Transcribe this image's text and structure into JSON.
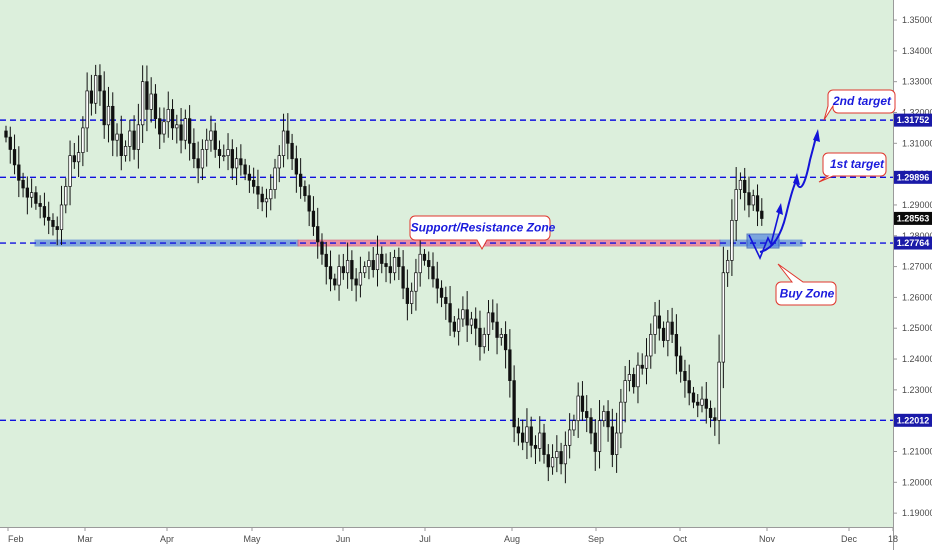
{
  "chart_data": {
    "type": "candlestick",
    "x_tick_labels": [
      "Feb",
      "Mar",
      "Apr",
      "May",
      "Jun",
      "Jul",
      "Aug",
      "Sep",
      "Oct",
      "Nov",
      "Dec",
      "18"
    ],
    "y_tick_labels": [
      "1.35000",
      "1.34000",
      "1.33000",
      "1.32000",
      "1.31000",
      "1.30000",
      "1.29000",
      "1.28000",
      "1.27000",
      "1.26000",
      "1.25000",
      "1.24000",
      "1.23000",
      "1.22000",
      "1.21000",
      "1.20000",
      "1.19000"
    ],
    "ylim": [
      1.1855,
      1.3565
    ],
    "levels": [
      {
        "id": "level-2nd-target",
        "price": 1.31752,
        "label": "1.31752"
      },
      {
        "id": "level-1st-target",
        "price": 1.29896,
        "label": "1.29896"
      },
      {
        "id": "level-support",
        "price": 1.27764,
        "label": "1.27764"
      },
      {
        "id": "level-low",
        "price": 1.22012,
        "label": "1.22012"
      }
    ],
    "last_price": {
      "price": 1.28563,
      "label": "1.28563"
    },
    "annotations": {
      "support_resistance": "Support/Resistance Zone",
      "buy_zone": "Buy Zone",
      "first_target": "1st target",
      "second_target": "2nd target"
    },
    "closes": [
      1.312,
      1.308,
      1.303,
      1.298,
      1.2955,
      1.2925,
      1.294,
      1.2905,
      1.2895,
      1.286,
      1.285,
      1.283,
      1.282,
      1.29,
      1.296,
      1.306,
      1.304,
      1.307,
      1.315,
      1.327,
      1.323,
      1.332,
      1.327,
      1.316,
      1.322,
      1.311,
      1.313,
      1.306,
      1.309,
      1.314,
      1.308,
      1.316,
      1.33,
      1.321,
      1.326,
      1.318,
      1.313,
      1.317,
      1.321,
      1.315,
      1.316,
      1.311,
      1.318,
      1.31,
      1.305,
      1.302,
      1.308,
      1.311,
      1.314,
      1.308,
      1.306,
      1.306,
      1.308,
      1.302,
      1.305,
      1.303,
      1.3,
      1.298,
      1.296,
      1.2935,
      1.291,
      1.292,
      1.295,
      1.302,
      1.306,
      1.314,
      1.31,
      1.305,
      1.3,
      1.296,
      1.293,
      1.288,
      1.283,
      1.278,
      1.274,
      1.27,
      1.266,
      1.264,
      1.27,
      1.268,
      1.272,
      1.266,
      1.264,
      1.268,
      1.27,
      1.272,
      1.269,
      1.274,
      1.271,
      1.27,
      1.268,
      1.273,
      1.27,
      1.263,
      1.258,
      1.262,
      1.268,
      1.274,
      1.272,
      1.27,
      1.266,
      1.263,
      1.26,
      1.258,
      1.252,
      1.249,
      1.253,
      1.256,
      1.251,
      1.253,
      1.25,
      1.244,
      1.248,
      1.255,
      1.252,
      1.247,
      1.248,
      1.243,
      1.233,
      1.218,
      1.216,
      1.213,
      1.218,
      1.212,
      1.211,
      1.216,
      1.209,
      1.205,
      1.208,
      1.21,
      1.206,
      1.212,
      1.217,
      1.22,
      1.228,
      1.223,
      1.221,
      1.216,
      1.21,
      1.22,
      1.223,
      1.218,
      1.209,
      1.216,
      1.226,
      1.233,
      1.235,
      1.231,
      1.238,
      1.237,
      1.241,
      1.248,
      1.254,
      1.25,
      1.246,
      1.252,
      1.248,
      1.241,
      1.236,
      1.233,
      1.229,
      1.226,
      1.225,
      1.227,
      1.224,
      1.221,
      1.2201,
      1.239,
      1.268,
      1.272,
      1.285,
      1.295,
      1.298,
      1.294,
      1.29,
      1.293,
      1.288,
      1.2856
    ]
  },
  "colors": {
    "background": "#dcefdc",
    "bull": "#ffffff",
    "bear": "#111111",
    "wick": "#111111",
    "level_line": "#1010e0",
    "price_tag": "#1a1aa8",
    "last_price_tag": "#0a0a0a",
    "resistance_zone": "#f06a8c",
    "support_zone": "#3a6fd8",
    "buy_zone": "#4a7fe0",
    "callout_border": "#e0362c",
    "arrow": "#1414d8"
  }
}
